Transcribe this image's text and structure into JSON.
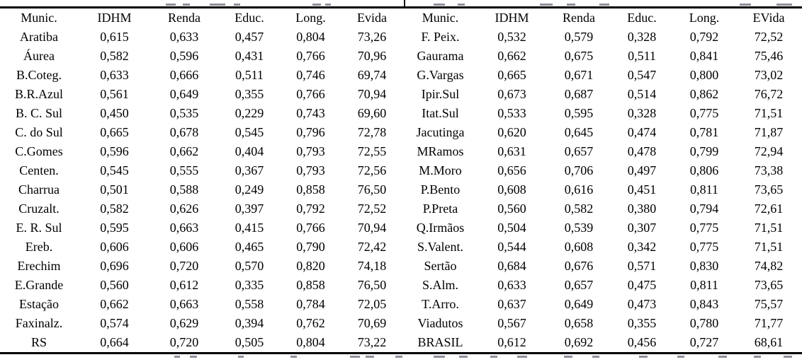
{
  "colors": {
    "background": "#ffffff",
    "text": "#000000",
    "rule": "#000000"
  },
  "table": {
    "headers": [
      "Munic.",
      "IDHM",
      "Renda",
      "Educ.",
      "Long.",
      "Evida",
      "Munic.",
      "IDHM",
      "Renda",
      "Educ.",
      "Long.",
      "EVida"
    ],
    "rows": [
      [
        "Aratiba",
        "0,615",
        "0,633",
        "0,457",
        "0,804",
        "73,26",
        "F. Peix.",
        "0,532",
        "0,579",
        "0,328",
        "0,792",
        "72,52"
      ],
      [
        "Áurea",
        "0,582",
        "0,596",
        "0,431",
        "0,766",
        "70,96",
        "Gaurama",
        "0,662",
        "0,675",
        "0,511",
        "0,841",
        "75,46"
      ],
      [
        "B.Coteg.",
        "0,633",
        "0,666",
        "0,511",
        "0,746",
        "69,74",
        "G.Vargas",
        "0,665",
        "0,671",
        "0,547",
        "0,800",
        "73,02"
      ],
      [
        "B.R.Azul",
        "0,561",
        "0,649",
        "0,355",
        "0,766",
        "70,94",
        "Ipir.Sul",
        "0,673",
        "0,687",
        "0,514",
        "0,862",
        "76,72"
      ],
      [
        "B. C. Sul",
        "0,450",
        "0,535",
        "0,229",
        "0,743",
        "69,60",
        "Itat.Sul",
        "0,533",
        "0,595",
        "0,328",
        "0,775",
        "71,51"
      ],
      [
        "C. do Sul",
        "0,665",
        "0,678",
        "0,545",
        "0,796",
        "72,78",
        "Jacutinga",
        "0,620",
        "0,645",
        "0,474",
        "0,781",
        "71,87"
      ],
      [
        "C.Gomes",
        "0,596",
        "0,662",
        "0,404",
        "0,793",
        "72,55",
        "MRamos",
        "0,631",
        "0,657",
        "0,478",
        "0,799",
        "72,94"
      ],
      [
        "Centen.",
        "0,545",
        "0,555",
        "0,367",
        "0,793",
        "72,56",
        "M.Moro",
        "0,656",
        "0,706",
        "0,497",
        "0,806",
        "73,38"
      ],
      [
        "Charrua",
        "0,501",
        "0,588",
        "0,249",
        "0,858",
        "76,50",
        "P.Bento",
        "0,608",
        "0,616",
        "0,451",
        "0,811",
        "73,65"
      ],
      [
        "Cruzalt.",
        "0,582",
        "0,626",
        "0,397",
        "0,792",
        "72,52",
        "P.Preta",
        "0,560",
        "0,582",
        "0,380",
        "0,794",
        "72,61"
      ],
      [
        "E. R. Sul",
        "0,595",
        "0,663",
        "0,415",
        "0,766",
        "70,94",
        "Q.Irmãos",
        "0,504",
        "0,539",
        "0,307",
        "0,775",
        "71,51"
      ],
      [
        "Ereb.",
        "0,606",
        "0,606",
        "0,465",
        "0,790",
        "72,42",
        "S.Valent.",
        "0,544",
        "0,608",
        "0,342",
        "0,775",
        "71,51"
      ],
      [
        "Erechim",
        "0,696",
        "0,720",
        "0,570",
        "0,820",
        "74,18",
        "Sertão",
        "0,684",
        "0,676",
        "0,571",
        "0,830",
        "74,82"
      ],
      [
        "E.Grande",
        "0,560",
        "0,612",
        "0,335",
        "0,858",
        "76,50",
        "S.Alm.",
        "0,633",
        "0,657",
        "0,475",
        "0,811",
        "73,65"
      ],
      [
        "Estação",
        "0,662",
        "0,663",
        "0,558",
        "0,784",
        "72,05",
        "T.Arro.",
        "0,637",
        "0,649",
        "0,473",
        "0,843",
        "75,57"
      ],
      [
        "Faxinalz.",
        "0,574",
        "0,629",
        "0,394",
        "0,762",
        "70,69",
        "Viadutos",
        "0,567",
        "0,658",
        "0,355",
        "0,780",
        "71,77"
      ],
      [
        "RS",
        "0,664",
        "0,720",
        "0,505",
        "0,804",
        "73,22",
        "BRASIL",
        "0,612",
        "0,692",
        "0,456",
        "0,727",
        "68,61"
      ]
    ]
  }
}
